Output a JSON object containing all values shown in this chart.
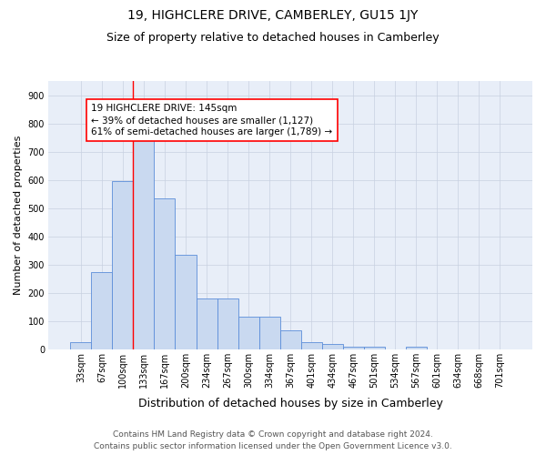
{
  "title": "19, HIGHCLERE DRIVE, CAMBERLEY, GU15 1JY",
  "subtitle": "Size of property relative to detached houses in Camberley",
  "xlabel": "Distribution of detached houses by size in Camberley",
  "ylabel": "Number of detached properties",
  "categories": [
    "33sqm",
    "67sqm",
    "100sqm",
    "133sqm",
    "167sqm",
    "200sqm",
    "234sqm",
    "267sqm",
    "300sqm",
    "334sqm",
    "367sqm",
    "401sqm",
    "434sqm",
    "467sqm",
    "501sqm",
    "534sqm",
    "567sqm",
    "601sqm",
    "634sqm",
    "668sqm",
    "701sqm"
  ],
  "bar_values": [
    25,
    272,
    597,
    740,
    535,
    335,
    180,
    180,
    115,
    115,
    68,
    25,
    18,
    10,
    10,
    0,
    8,
    0,
    0,
    0,
    0
  ],
  "bar_color": "#c9d9f0",
  "bar_edge_color": "#5b8dd9",
  "vline_color": "red",
  "annotation_line1": "19 HIGHCLERE DRIVE: 145sqm",
  "annotation_line2": "← 39% of detached houses are smaller (1,127)",
  "annotation_line3": "61% of semi-detached houses are larger (1,789) →",
  "annotation_box_color": "white",
  "annotation_box_edge": "red",
  "ylim": [
    0,
    950
  ],
  "yticks": [
    0,
    100,
    200,
    300,
    400,
    500,
    600,
    700,
    800,
    900
  ],
  "grid_color": "#c8d0e0",
  "bg_color": "#e8eef8",
  "footer1": "Contains HM Land Registry data © Crown copyright and database right 2024.",
  "footer2": "Contains public sector information licensed under the Open Government Licence v3.0.",
  "title_fontsize": 10,
  "subtitle_fontsize": 9,
  "xlabel_fontsize": 9,
  "ylabel_fontsize": 8,
  "tick_fontsize": 7,
  "annot_fontsize": 7.5,
  "footer_fontsize": 6.5
}
